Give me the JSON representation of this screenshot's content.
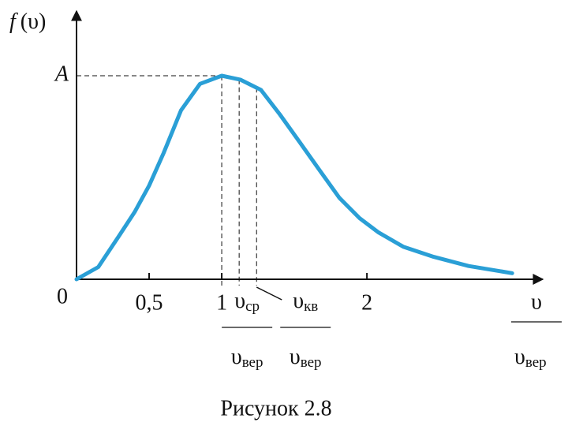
{
  "chart_data": {
    "type": "line",
    "y_axis_label": {
      "symbol": "f",
      "argument": "(υ)"
    },
    "x_axis_label": {
      "numerator": "υ",
      "denominator_symbol": "υ",
      "denominator_subscript": "вер"
    },
    "caption": "Рисунок 2.8",
    "x": [
      0,
      0.15,
      0.29,
      0.4,
      0.5,
      0.6,
      0.72,
      0.85,
      1,
      1.13,
      1.27,
      1.4,
      1.54,
      1.68,
      1.81,
      1.95,
      2.08,
      2.25,
      2.46,
      2.7,
      3.0
    ],
    "series": [
      {
        "color": "#2a9fd6",
        "values": [
          0,
          0.06,
          0.21,
          0.33,
          0.46,
          0.62,
          0.83,
          0.96,
          1,
          0.98,
          0.93,
          0.81,
          0.67,
          0.53,
          0.4,
          0.3,
          0.23,
          0.16,
          0.11,
          0.065,
          0.03
        ]
      }
    ],
    "xlim": [
      0,
      3.2
    ],
    "ylim": [
      0,
      1.31
    ],
    "xticks": [
      {
        "value": 0.5,
        "label": "0,5"
      },
      1,
      2
    ],
    "yticks": [
      {
        "value": 0,
        "label": "0"
      },
      {
        "value": 1,
        "label": "A"
      }
    ],
    "markers": [
      {
        "x": 1.12,
        "symbol": "υ",
        "subscript": "ср",
        "denominator_symbol": "υ",
        "denominator_subscript": "вер"
      },
      {
        "x": 1.24,
        "symbol": "υ",
        "subscript": "кв",
        "denominator_symbol": "υ",
        "denominator_subscript": "вер"
      }
    ]
  }
}
